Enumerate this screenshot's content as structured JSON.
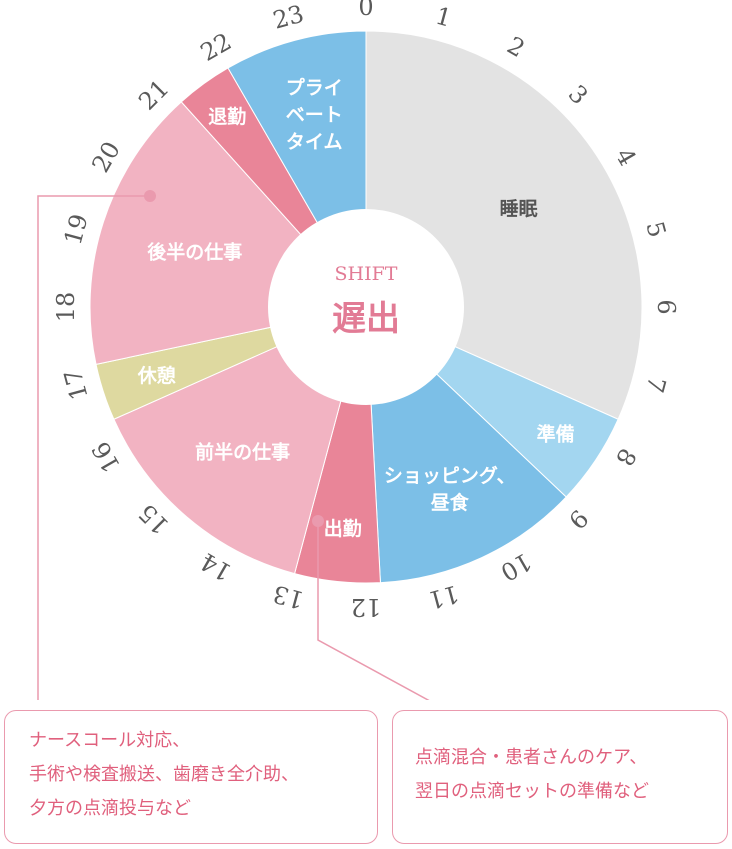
{
  "center": {
    "sub": "SHIFT",
    "main": "遅出"
  },
  "hours": [
    "0",
    "1",
    "2",
    "3",
    "4",
    "5",
    "6",
    "7",
    "8",
    "9",
    "10",
    "11",
    "12",
    "13",
    "14",
    "15",
    "16",
    "17",
    "18",
    "19",
    "20",
    "21",
    "22",
    "23"
  ],
  "segments": [
    {
      "id": "sleep",
      "start": 0,
      "end": 7.6,
      "color": "#e3e3e3",
      "text_color": "#555555",
      "lines": [
        "睡眠"
      ]
    },
    {
      "id": "prep",
      "start": 7.6,
      "end": 8.9,
      "color": "#a3d6f0",
      "text_color": "#ffffff",
      "lines": [
        "準備"
      ]
    },
    {
      "id": "shopping",
      "start": 8.9,
      "end": 11.8,
      "color": "#7cbfe7",
      "text_color": "#ffffff",
      "lines": [
        "ショッピング、",
        "昼食"
      ]
    },
    {
      "id": "commute",
      "start": 11.8,
      "end": 13.0,
      "color": "#e98598",
      "text_color": "#ffffff",
      "lines": [
        "出勤"
      ]
    },
    {
      "id": "work-first",
      "start": 13.0,
      "end": 16.4,
      "color": "#f2b3c2",
      "text_color": "#ffffff",
      "lines": [
        "前半の仕事"
      ]
    },
    {
      "id": "break",
      "start": 16.4,
      "end": 17.2,
      "color": "#ded9a0",
      "text_color": "#ffffff",
      "lines": [
        "休憩"
      ]
    },
    {
      "id": "work-second",
      "start": 17.2,
      "end": 21.2,
      "color": "#f2b3c2",
      "text_color": "#ffffff",
      "lines": [
        "後半の仕事"
      ]
    },
    {
      "id": "leave",
      "start": 21.2,
      "end": 22.0,
      "color": "#e98598",
      "text_color": "#ffffff",
      "lines": [
        "退勤"
      ]
    },
    {
      "id": "private",
      "start": 22.0,
      "end": 24.0,
      "color": "#7cbfe7",
      "text_color": "#ffffff",
      "lines": [
        "プライ",
        "ベート",
        "タイム"
      ]
    }
  ],
  "callouts": {
    "left": {
      "lines": [
        "ナースコール対応、",
        "手術や検査搬送、歯磨き全介助、",
        "夕方の点滴投与など"
      ]
    },
    "right": {
      "lines": [
        "点滴混合・患者さんのケア、",
        "翌日の点滴セットの準備など"
      ]
    }
  },
  "colors": {
    "accent": "#e27b95",
    "line": "#ea9aae"
  }
}
